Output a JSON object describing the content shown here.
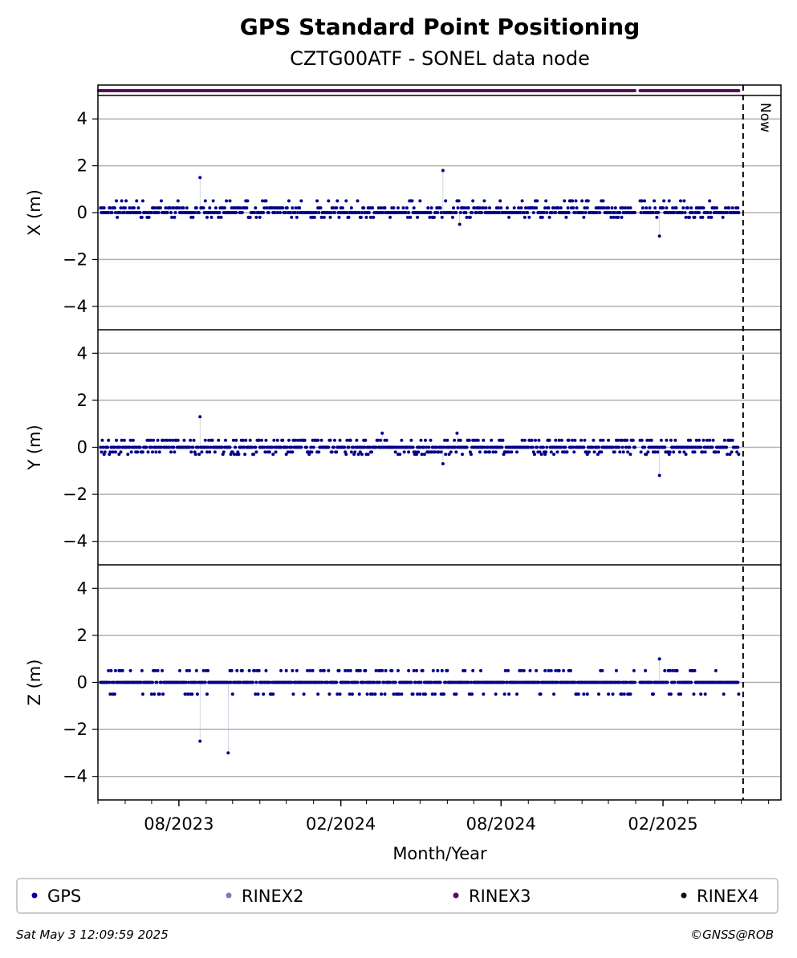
{
  "chart_data": {
    "type": "scatter",
    "title": "GPS Standard Point Positioning",
    "subtitle": "CZTG00ATF - SONEL data node",
    "xlabel": "Month/Year",
    "x_ticks": [
      "08/2023",
      "02/2024",
      "08/2024",
      "02/2025"
    ],
    "x_range": [
      "2023-05-01",
      "2025-06-15"
    ],
    "now_date": "2025-05-03",
    "now_label": "Now",
    "gap": [
      "2025-01-01",
      "2025-01-05"
    ],
    "panels": [
      {
        "ylabel": "X (m)",
        "ylim": [
          -5,
          5
        ],
        "yticks": [
          "4",
          "2",
          "0",
          "−2",
          "−4"
        ],
        "ytick_values": [
          4,
          2,
          0,
          -2,
          -4
        ],
        "levels": [
          0.0,
          0.2,
          0.5,
          -0.2
        ],
        "level_weights": [
          0.55,
          0.28,
          0.09,
          0.08
        ],
        "outliers": [
          {
            "date": "2023-08-25",
            "value": 1.5
          },
          {
            "date": "2024-05-27",
            "value": 1.8
          },
          {
            "date": "2024-06-15",
            "value": -0.5
          },
          {
            "date": "2025-01-28",
            "value": -1.0
          }
        ]
      },
      {
        "ylabel": "Y (m)",
        "ylim": [
          -5,
          5
        ],
        "yticks": [
          "4",
          "2",
          "0",
          "−2",
          "−4"
        ],
        "ytick_values": [
          4,
          2,
          0,
          -2,
          -4
        ],
        "levels": [
          0.0,
          0.3,
          -0.2,
          -0.3
        ],
        "level_weights": [
          0.55,
          0.22,
          0.17,
          0.06
        ],
        "outliers": [
          {
            "date": "2023-08-25",
            "value": 1.3
          },
          {
            "date": "2024-03-19",
            "value": 0.6
          },
          {
            "date": "2024-05-27",
            "value": -0.7
          },
          {
            "date": "2024-06-12",
            "value": 0.6
          },
          {
            "date": "2025-01-28",
            "value": -1.2
          }
        ]
      },
      {
        "ylabel": "Z (m)",
        "ylim": [
          -5,
          5
        ],
        "yticks": [
          "4",
          "2",
          "0",
          "−2",
          "−4"
        ],
        "ytick_values": [
          4,
          2,
          0,
          -2,
          -4
        ],
        "levels": [
          0.0,
          0.5,
          -0.5
        ],
        "level_weights": [
          0.72,
          0.15,
          0.13
        ],
        "outliers": [
          {
            "date": "2023-08-25",
            "value": -2.5
          },
          {
            "date": "2023-09-26",
            "value": -3.0
          },
          {
            "date": "2025-01-28",
            "value": 1.0
          }
        ]
      }
    ],
    "series": [
      {
        "name": "GPS",
        "color": "#00008b"
      },
      {
        "name": "RINEX2",
        "color": "#7b7bbf"
      },
      {
        "name": "RINEX3",
        "color": "#5c0a5c"
      },
      {
        "name": "RINEX4",
        "color": "#200820"
      }
    ],
    "grid": true,
    "legend_position": "bottom"
  },
  "footer": {
    "timestamp": "Sat May  3 12:09:59 2025",
    "credit": "©GNSS@ROB"
  }
}
